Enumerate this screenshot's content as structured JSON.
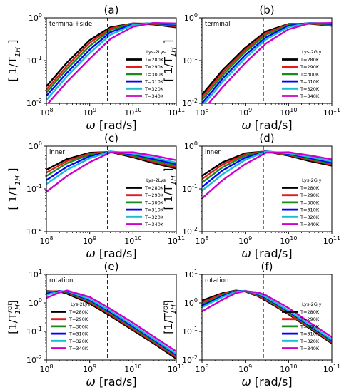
{
  "series_colors": [
    "#000000",
    "#e41a1c",
    "#1a8a1a",
    "#0000ff",
    "#17becf",
    "#cc00cc"
  ],
  "legend_entries": [
    "T=280K",
    "T=290K",
    "T=300K",
    "T=310K",
    "T=320K",
    "T=340K"
  ],
  "chart_data": [
    {
      "type": "line",
      "panel_label": "(a)",
      "annotation": "terminal+side",
      "legend_title": "Lys-2Lys",
      "legend_position": "center-right",
      "ylabel": "[ 1/T_1H ]",
      "xlabel": "ω [rad/s]",
      "xscale": "log",
      "yscale": "log",
      "xlim": [
        100000000.0,
        100000000000.0
      ],
      "ylim": [
        0.01,
        1
      ],
      "x_ticks": [
        "10^8",
        "10^9",
        "10^10",
        "10^11"
      ],
      "y_ticks": [
        "10^-2",
        "10^-1",
        "10^0"
      ],
      "vline_x": 2600000000.0,
      "x": [
        100000000.0,
        300000000.0,
        1000000000.0,
        3000000000.0,
        10000000000.0,
        30000000000.0,
        100000000000.0
      ],
      "series": [
        {
          "name": "T=280K",
          "values": [
            0.025,
            0.09,
            0.3,
            0.6,
            0.74,
            0.7,
            0.6
          ]
        },
        {
          "name": "T=290K",
          "values": [
            0.021,
            0.075,
            0.26,
            0.56,
            0.74,
            0.72,
            0.63
          ]
        },
        {
          "name": "T=300K",
          "values": [
            0.018,
            0.064,
            0.22,
            0.52,
            0.73,
            0.74,
            0.66
          ]
        },
        {
          "name": "T=310K",
          "values": [
            0.015,
            0.052,
            0.18,
            0.46,
            0.71,
            0.75,
            0.69
          ]
        },
        {
          "name": "T=320K",
          "values": [
            0.012,
            0.043,
            0.15,
            0.4,
            0.68,
            0.76,
            0.72
          ]
        },
        {
          "name": "T=340K",
          "values": [
            0.009,
            0.032,
            0.11,
            0.32,
            0.62,
            0.76,
            0.74
          ]
        }
      ]
    },
    {
      "type": "line",
      "panel_label": "(b)",
      "annotation": "terminal",
      "legend_title": "Lys-2Gly",
      "legend_position": "center-right",
      "ylabel": "[ 1/T_1H ]",
      "xlabel": "ω [rad/s]",
      "xscale": "log",
      "yscale": "log",
      "xlim": [
        100000000.0,
        100000000000.0
      ],
      "ylim": [
        0.01,
        1
      ],
      "x_ticks": [
        "10^8",
        "10^9",
        "10^10",
        "10^11"
      ],
      "y_ticks": [
        "10^-2",
        "10^-1",
        "10^0"
      ],
      "vline_x": 2600000000.0,
      "x": [
        100000000.0,
        300000000.0,
        1000000000.0,
        3000000000.0,
        10000000000.0,
        30000000000.0,
        100000000000.0
      ],
      "series": [
        {
          "name": "T=280K",
          "values": [
            0.016,
            0.06,
            0.2,
            0.48,
            0.72,
            0.73,
            0.65
          ]
        },
        {
          "name": "T=290K",
          "values": [
            0.014,
            0.052,
            0.18,
            0.44,
            0.7,
            0.74,
            0.67
          ]
        },
        {
          "name": "T=300K",
          "values": [
            0.012,
            0.045,
            0.16,
            0.4,
            0.68,
            0.75,
            0.7
          ]
        },
        {
          "name": "T=310K",
          "values": [
            0.01,
            0.038,
            0.135,
            0.35,
            0.65,
            0.76,
            0.72
          ]
        },
        {
          "name": "T=320K",
          "values": [
            0.0085,
            0.032,
            0.115,
            0.31,
            0.61,
            0.76,
            0.74
          ]
        },
        {
          "name": "T=340K",
          "values": [
            0.0065,
            0.024,
            0.088,
            0.25,
            0.54,
            0.74,
            0.76
          ]
        }
      ]
    },
    {
      "type": "line",
      "panel_label": "(c)",
      "annotation": "inner",
      "legend_title": "Lys-2Lys",
      "legend_position": "center-right",
      "ylabel": "[ 1/T_1H ]",
      "xlabel": "ω [rad/s]",
      "xscale": "log",
      "yscale": "log",
      "xlim": [
        100000000.0,
        100000000000.0
      ],
      "ylim": [
        0.01,
        1
      ],
      "x_ticks": [
        "10^8",
        "10^9",
        "10^10",
        "10^11"
      ],
      "y_ticks": [
        "10^-2",
        "10^-1",
        "10^0"
      ],
      "vline_x": 2600000000.0,
      "x": [
        100000000.0,
        300000000.0,
        1000000000.0,
        3000000000.0,
        10000000000.0,
        30000000000.0,
        100000000000.0
      ],
      "series": [
        {
          "name": "T=280K",
          "values": [
            0.28,
            0.5,
            0.7,
            0.73,
            0.55,
            0.4,
            0.3
          ]
        },
        {
          "name": "T=290K",
          "values": [
            0.24,
            0.45,
            0.67,
            0.74,
            0.58,
            0.43,
            0.32
          ]
        },
        {
          "name": "T=300K",
          "values": [
            0.2,
            0.4,
            0.63,
            0.75,
            0.61,
            0.46,
            0.35
          ]
        },
        {
          "name": "T=310K",
          "values": [
            0.16,
            0.33,
            0.58,
            0.75,
            0.64,
            0.5,
            0.38
          ]
        },
        {
          "name": "T=320K",
          "values": [
            0.13,
            0.28,
            0.52,
            0.75,
            0.67,
            0.54,
            0.41
          ]
        },
        {
          "name": "T=340K",
          "values": [
            0.085,
            0.2,
            0.42,
            0.71,
            0.72,
            0.6,
            0.47
          ]
        }
      ]
    },
    {
      "type": "line",
      "panel_label": "(d)",
      "annotation": "inner",
      "legend_title": "Lys-2Gly",
      "legend_position": "center-right",
      "ylabel": "[ 1/T_1H ]",
      "xlabel": "ω [rad/s]",
      "xscale": "log",
      "yscale": "log",
      "xlim": [
        100000000.0,
        100000000000.0
      ],
      "ylim": [
        0.01,
        1
      ],
      "x_ticks": [
        "10^8",
        "10^9",
        "10^10",
        "10^11"
      ],
      "y_ticks": [
        "10^-2",
        "10^-1",
        "10^0"
      ],
      "vline_x": 2600000000.0,
      "x": [
        100000000.0,
        300000000.0,
        1000000000.0,
        3000000000.0,
        10000000000.0,
        30000000000.0,
        100000000000.0
      ],
      "series": [
        {
          "name": "T=280K",
          "values": [
            0.2,
            0.42,
            0.68,
            0.75,
            0.6,
            0.45,
            0.35
          ]
        },
        {
          "name": "T=290K",
          "values": [
            0.17,
            0.37,
            0.64,
            0.76,
            0.62,
            0.48,
            0.37
          ]
        },
        {
          "name": "T=300K",
          "values": [
            0.14,
            0.32,
            0.6,
            0.76,
            0.64,
            0.5,
            0.39
          ]
        },
        {
          "name": "T=310K",
          "values": [
            0.11,
            0.27,
            0.54,
            0.76,
            0.66,
            0.53,
            0.41
          ]
        },
        {
          "name": "T=320K",
          "values": [
            0.09,
            0.22,
            0.48,
            0.75,
            0.68,
            0.56,
            0.44
          ]
        },
        {
          "name": "T=340K",
          "values": [
            0.06,
            0.16,
            0.38,
            0.7,
            0.72,
            0.61,
            0.49
          ]
        }
      ]
    },
    {
      "type": "line",
      "panel_label": "(e)",
      "annotation": "rotation",
      "legend_title": "Lys-2Lys",
      "legend_position": "bottom-left",
      "ylabel": "[1/T_1H^rot]",
      "xlabel": "ω [rad/s]",
      "xscale": "log",
      "yscale": "log",
      "xlim": [
        100000000.0,
        100000000000.0
      ],
      "ylim": [
        0.01,
        10
      ],
      "x_ticks": [
        "10^8",
        "10^9",
        "10^10",
        "10^11"
      ],
      "y_ticks": [
        "10^-2",
        "10^-1",
        "10^0",
        "10^1"
      ],
      "vline_x": 2600000000.0,
      "x": [
        100000000.0,
        200000000.0,
        300000000.0,
        1000000000.0,
        3000000000.0,
        10000000000.0,
        30000000000.0,
        100000000000.0
      ],
      "series": [
        {
          "name": "T=280K",
          "values": [
            2.6,
            2.5,
            2.1,
            0.95,
            0.35,
            0.11,
            0.038,
            0.011
          ]
        },
        {
          "name": "T=290K",
          "values": [
            2.5,
            2.6,
            2.3,
            1.05,
            0.39,
            0.12,
            0.042,
            0.0125
          ]
        },
        {
          "name": "T=300K",
          "values": [
            2.3,
            2.6,
            2.4,
            1.15,
            0.43,
            0.135,
            0.046,
            0.0138
          ]
        },
        {
          "name": "T=310K",
          "values": [
            2.1,
            2.6,
            2.5,
            1.25,
            0.47,
            0.15,
            0.05,
            0.015
          ]
        },
        {
          "name": "T=320K",
          "values": [
            1.9,
            2.5,
            2.6,
            1.35,
            0.52,
            0.165,
            0.055,
            0.0165
          ]
        },
        {
          "name": "T=340K",
          "values": [
            1.5,
            2.3,
            2.7,
            1.6,
            0.62,
            0.2,
            0.066,
            0.02
          ]
        }
      ]
    },
    {
      "type": "line",
      "panel_label": "(f)",
      "annotation": "rotation",
      "legend_title": "Lys-2Gly",
      "legend_position": "bottom-right",
      "ylabel": "[1/T_1H^rot]",
      "xlabel": "ω [rad/s]",
      "xscale": "log",
      "yscale": "log",
      "xlim": [
        100000000.0,
        100000000000.0
      ],
      "ylim": [
        0.01,
        10
      ],
      "x_ticks": [
        "10^8",
        "10^9",
        "10^10",
        "10^11"
      ],
      "y_ticks": [
        "10^-2",
        "10^-1",
        "10^0",
        "10^1"
      ],
      "vline_x": 2600000000.0,
      "x": [
        100000000.0,
        300000000.0,
        600000000.0,
        1000000000.0,
        2000000000.0,
        3000000000.0,
        10000000000.0,
        30000000000.0,
        100000000000.0
      ],
      "series": [
        {
          "name": "T=280K",
          "values": [
            1.2,
            2.2,
            2.7,
            2.5,
            1.7,
            1.2,
            0.4,
            0.13,
            0.038
          ]
        },
        {
          "name": "T=290K",
          "values": [
            1.05,
            2.05,
            2.65,
            2.55,
            1.8,
            1.3,
            0.43,
            0.14,
            0.041
          ]
        },
        {
          "name": "T=300K",
          "values": [
            0.9,
            1.9,
            2.6,
            2.6,
            1.9,
            1.4,
            0.46,
            0.15,
            0.044
          ]
        },
        {
          "name": "T=310K",
          "values": [
            0.8,
            1.75,
            2.55,
            2.65,
            2.0,
            1.5,
            0.5,
            0.16,
            0.048
          ]
        },
        {
          "name": "T=320K",
          "values": [
            0.7,
            1.6,
            2.45,
            2.65,
            2.1,
            1.6,
            0.54,
            0.175,
            0.052
          ]
        },
        {
          "name": "T=340K",
          "values": [
            0.5,
            1.3,
            2.2,
            2.6,
            2.3,
            1.85,
            0.66,
            0.21,
            0.063
          ]
        }
      ]
    }
  ]
}
